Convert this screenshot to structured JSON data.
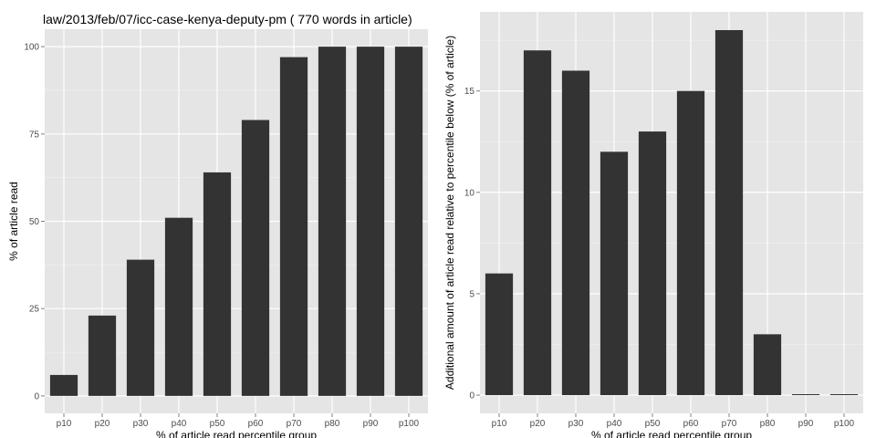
{
  "chart_data": [
    {
      "type": "bar",
      "title": "law/2013/feb/07/icc-case-kenya-deputy-pm ( 770 words in article)",
      "xlabel": "% of article read percentile group",
      "ylabel": "% of article read",
      "categories": [
        "p10",
        "p20",
        "p30",
        "p40",
        "p50",
        "p60",
        "p70",
        "p80",
        "p90",
        "p100"
      ],
      "values": [
        6,
        23,
        39,
        51,
        64,
        79,
        97,
        100,
        100,
        100
      ],
      "ylim": [
        -5,
        105
      ],
      "yticks": [
        "0",
        "25",
        "50",
        "75",
        "100"
      ],
      "bar_color": "#333333",
      "panel_color": "#e5e5e5",
      "grid": true
    },
    {
      "type": "bar",
      "title": "",
      "xlabel": "% of article read percentile group",
      "ylabel": "Additional amount of article read relative to percentile below (% of article)",
      "categories": [
        "p10",
        "p20",
        "p30",
        "p40",
        "p50",
        "p60",
        "p70",
        "p80",
        "p90",
        "p100"
      ],
      "values": [
        6,
        17,
        16,
        12,
        13,
        15,
        18,
        3,
        0,
        0
      ],
      "ylim": [
        -0.9,
        18.9
      ],
      "yticks": [
        "0",
        "5",
        "10",
        "15"
      ],
      "bar_color": "#333333",
      "panel_color": "#e5e5e5",
      "grid": true
    }
  ]
}
